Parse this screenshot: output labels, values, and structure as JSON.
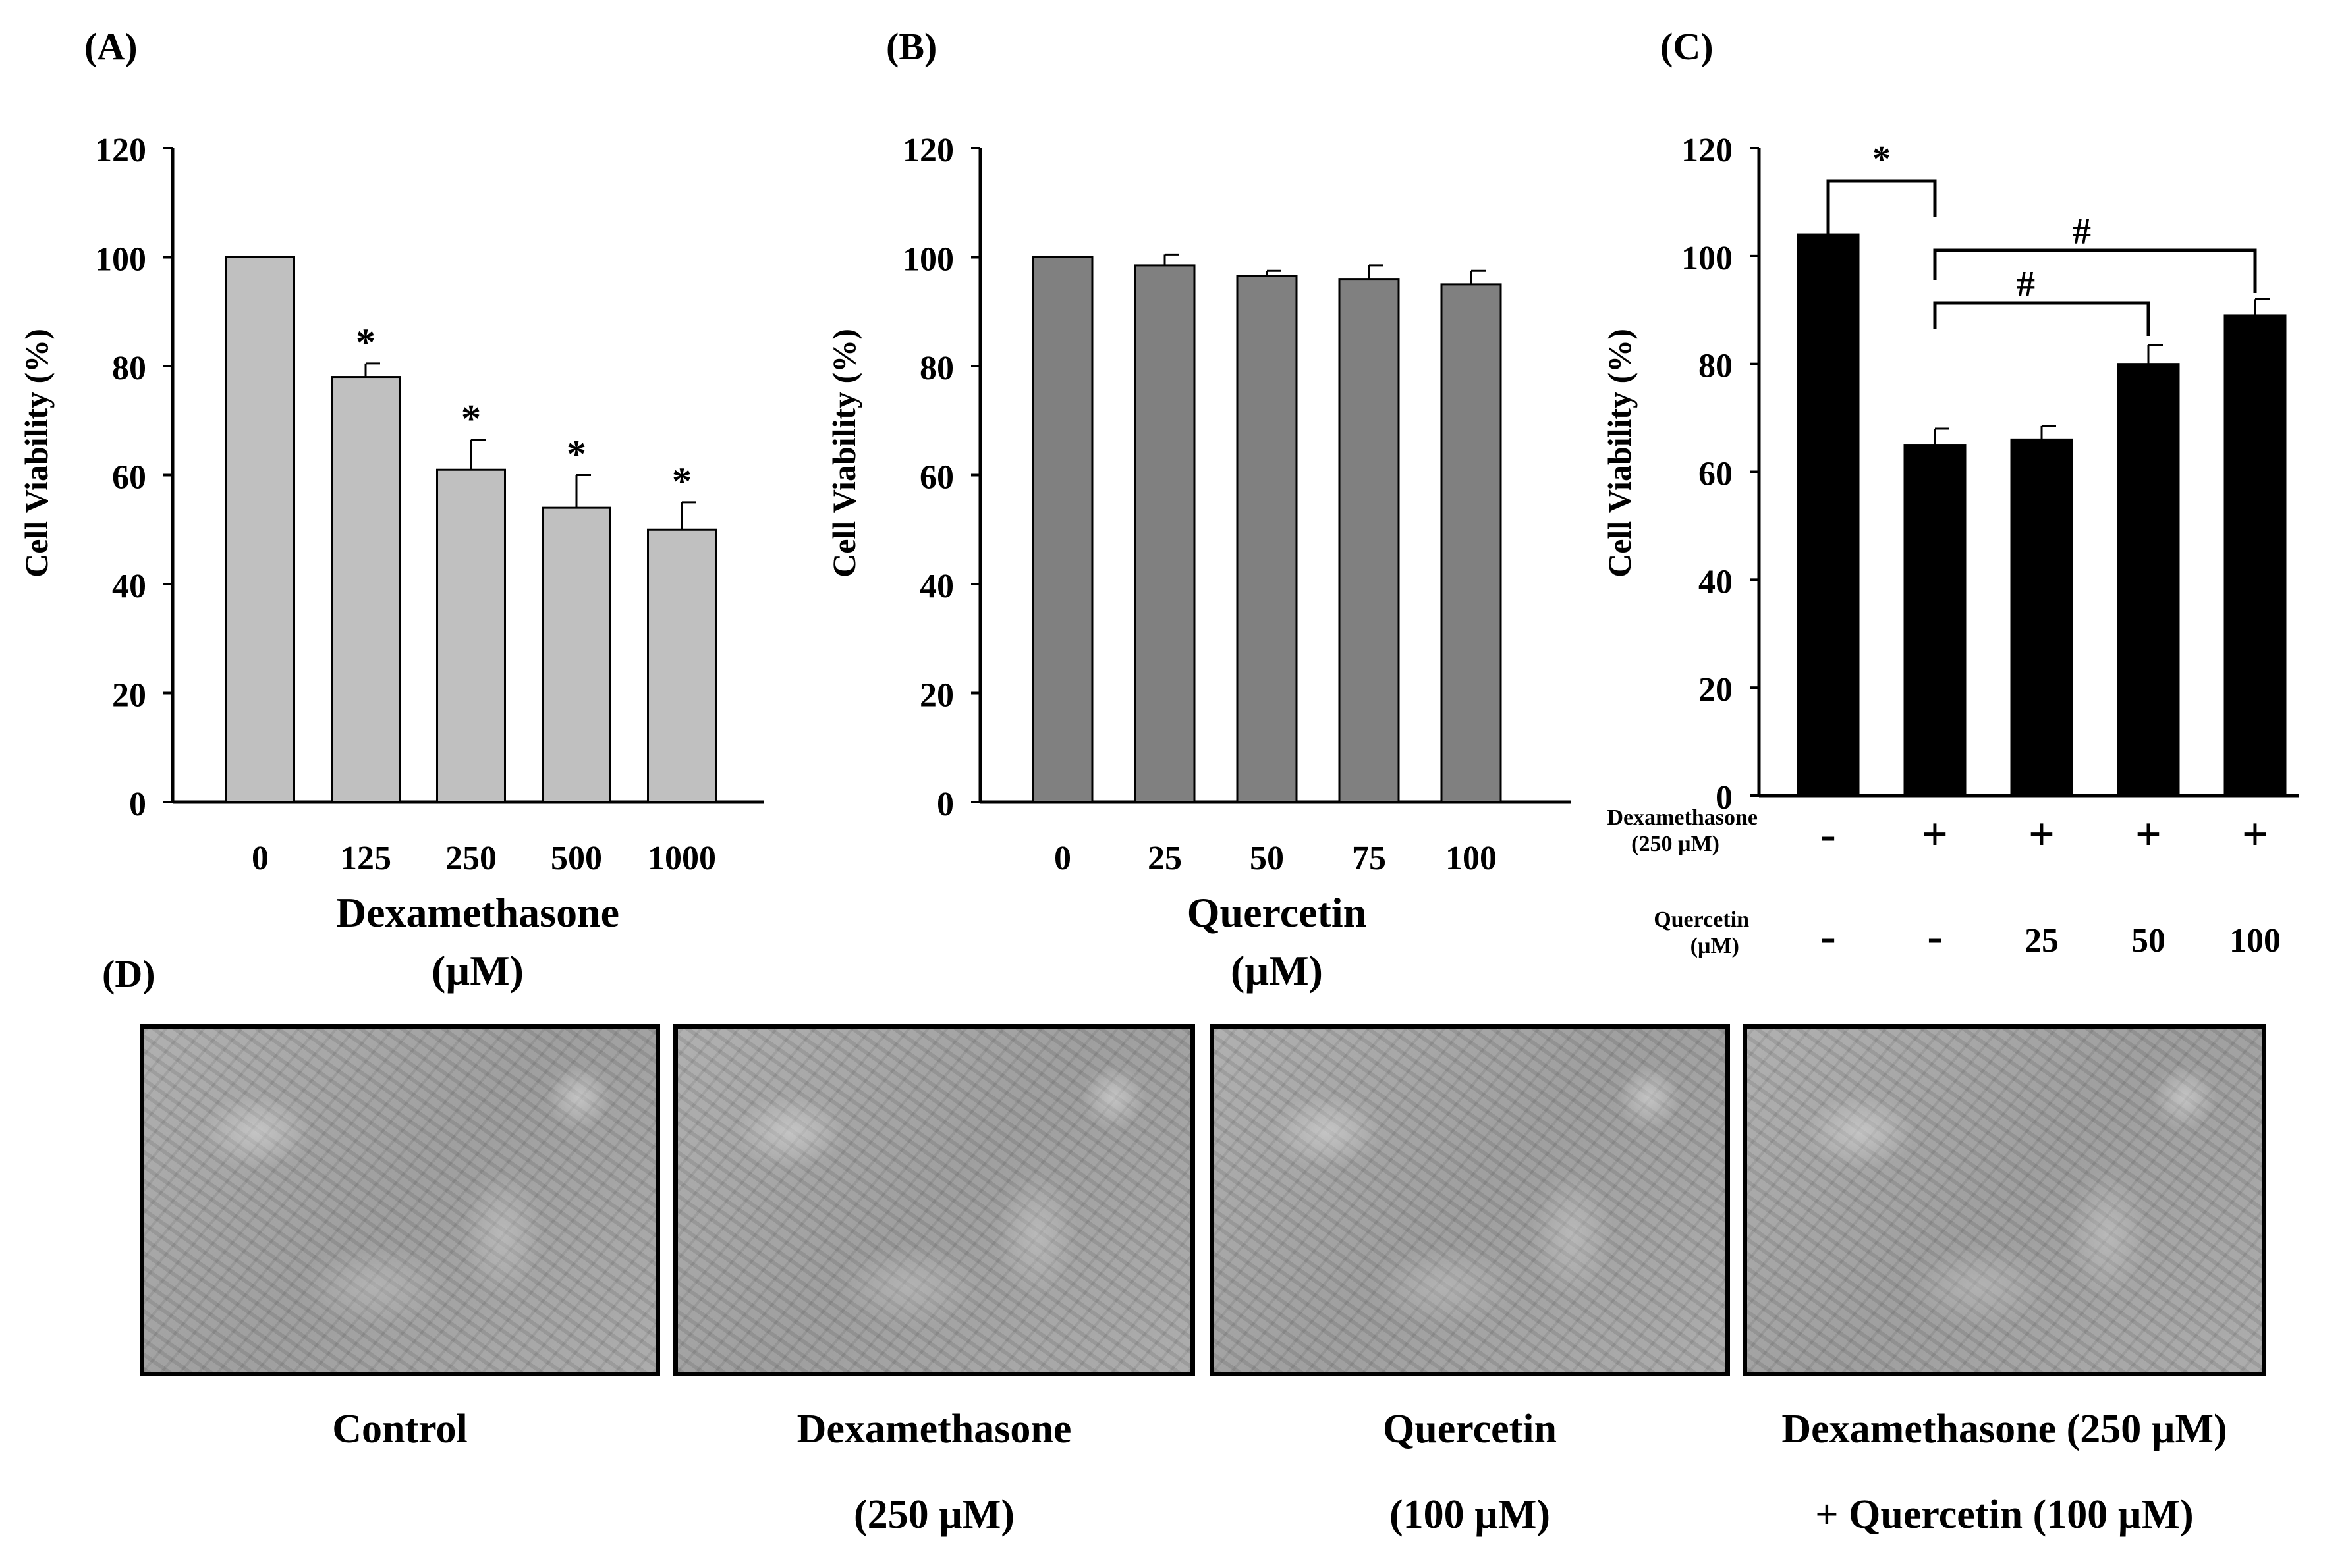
{
  "chart_data": [
    {
      "panel": "(A)",
      "type": "bar",
      "categories": [
        "0",
        "125",
        "250",
        "500",
        "1000"
      ],
      "values": [
        100,
        78,
        61,
        54,
        50
      ],
      "errors": [
        0,
        2.5,
        5.5,
        6,
        5
      ],
      "annotations": [
        "",
        "*",
        "*",
        "*",
        "*"
      ],
      "ylabel": "Cell Viability  (%)",
      "xlabel": [
        "Dexamethasone",
        "(µM)"
      ],
      "yticks": [
        "0",
        "20",
        "40",
        "60",
        "80",
        "100",
        "120"
      ],
      "ylim": [
        0,
        120
      ],
      "bar_color": "#c0c0c0"
    },
    {
      "panel": "(B)",
      "type": "bar",
      "categories": [
        "0",
        "25",
        "50",
        "75",
        "100"
      ],
      "values": [
        100,
        98.5,
        96.5,
        96,
        95
      ],
      "errors": [
        0,
        2,
        1,
        2.5,
        2.5
      ],
      "ylabel": "Cell Viability  (%)",
      "xlabel": [
        "Quercetin",
        "(µM)"
      ],
      "yticks": [
        "0",
        "20",
        "40",
        "60",
        "80",
        "100",
        "120"
      ],
      "ylim": [
        0,
        120
      ],
      "bar_color": "#808080"
    },
    {
      "panel": "(C)",
      "type": "bar",
      "values": [
        104,
        65,
        66,
        80,
        89
      ],
      "errors": [
        0,
        3,
        2.5,
        3.5,
        3
      ],
      "ylabel": "Cell Viability  (%)",
      "yticks": [
        "0",
        "20",
        "40",
        "60",
        "80",
        "100",
        "120"
      ],
      "ylim": [
        0,
        120
      ],
      "bar_color": "#000000",
      "rows": [
        {
          "label": [
            "Dexamethasone",
            "(250 µM)"
          ],
          "cells": [
            "-",
            "+",
            "+",
            "+",
            "+"
          ]
        },
        {
          "label": [
            "Quercetin",
            "(µM)"
          ],
          "cells": [
            "-",
            "-",
            "25",
            "50",
            "100"
          ]
        }
      ],
      "brackets": [
        {
          "from": 0,
          "to": 1,
          "symbol": "*"
        },
        {
          "from": 1,
          "to": 3,
          "symbol": "#"
        },
        {
          "from": 1,
          "to": 4,
          "symbol": "#"
        }
      ]
    }
  ],
  "panel_d": {
    "label": "(D)",
    "images": [
      {
        "caption": [
          "Control"
        ]
      },
      {
        "caption": [
          "Dexamethasone",
          "(250 µM)"
        ]
      },
      {
        "caption": [
          "Quercetin",
          "(100 µM)"
        ]
      },
      {
        "caption": [
          "Dexamethasone (250 µM)",
          "+ Quercetin (100 µM)"
        ]
      }
    ]
  }
}
